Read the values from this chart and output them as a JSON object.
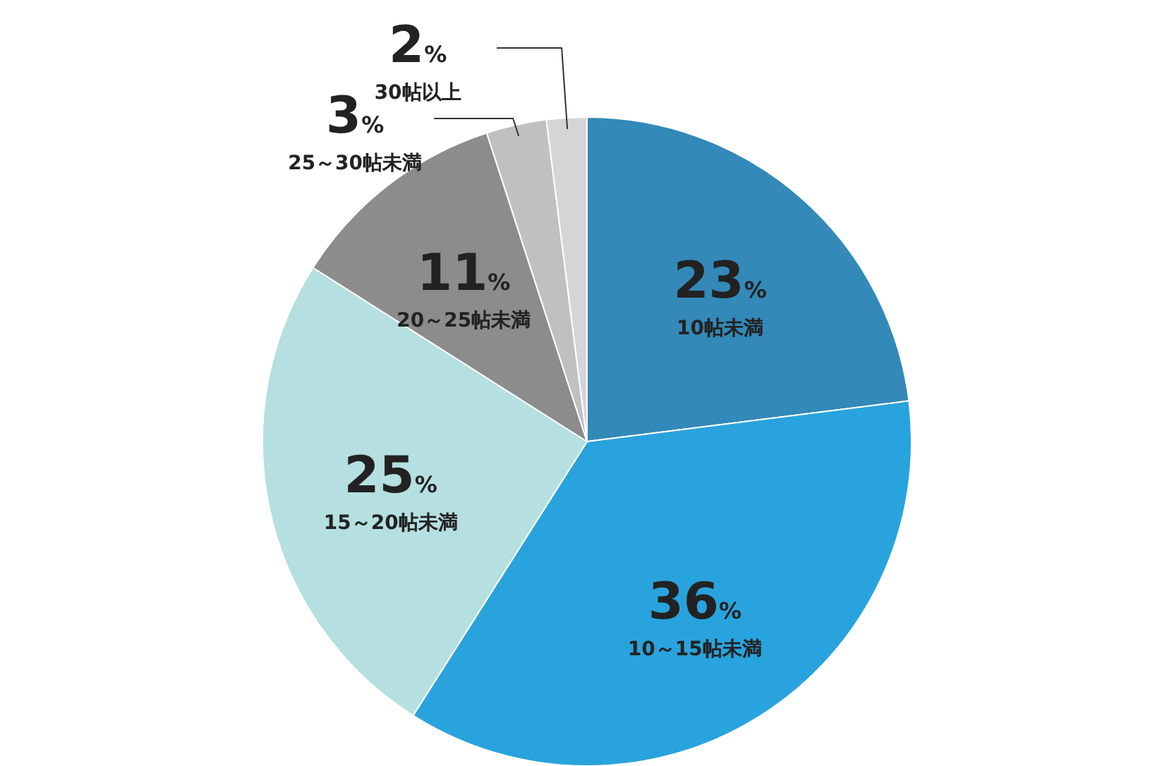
{
  "chart_data": {
    "type": "pie",
    "categories": [
      "10帖未満",
      "10～15帖未満",
      "15～20帖未満",
      "20～25帖未満",
      "25～30帖未満",
      "30帖以上"
    ],
    "values": [
      23,
      36,
      25,
      11,
      3,
      2
    ],
    "value_labels": [
      "23%",
      "36%",
      "25%",
      "11%",
      "3%",
      "2%"
    ],
    "colors": [
      "#3389b8",
      "#29a3dd",
      "#b5dfe0",
      "#8c8c8c",
      "#c0c0c0",
      "#d5d5d5"
    ]
  }
}
